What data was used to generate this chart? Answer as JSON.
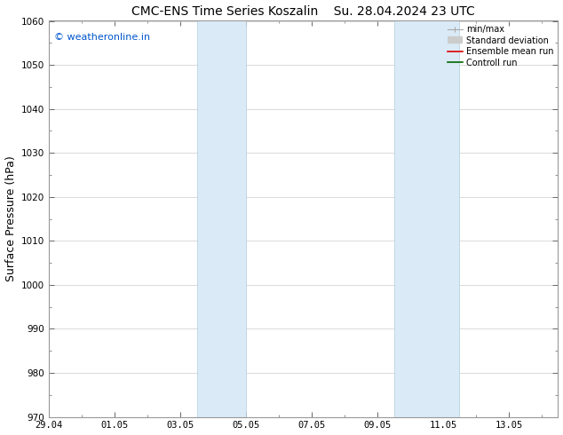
{
  "title_left": "CMC-ENS Time Series Koszalin",
  "title_right": "Su. 28.04.2024 23 UTC",
  "ylabel": "Surface Pressure (hPa)",
  "ylim": [
    970,
    1060
  ],
  "yticks": [
    970,
    980,
    990,
    1000,
    1010,
    1020,
    1030,
    1040,
    1050,
    1060
  ],
  "xtick_labels": [
    "29.04",
    "01.05",
    "03.05",
    "05.05",
    "07.05",
    "09.05",
    "11.05",
    "13.05"
  ],
  "xtick_positions": [
    0,
    2,
    4,
    6,
    8,
    10,
    12,
    14
  ],
  "xlim": [
    0,
    15.5
  ],
  "watermark": "© weatheronline.in",
  "watermark_color": "#0055cc",
  "shaded_bands": [
    {
      "x_start": 4.5,
      "x_end": 6.0
    },
    {
      "x_start": 10.5,
      "x_end": 12.5
    }
  ],
  "shaded_color": "#daeaf7",
  "shaded_edge_color": "#b0cce0",
  "background_color": "#ffffff",
  "spine_color": "#999999",
  "title_fontsize": 10,
  "tick_fontsize": 7.5,
  "label_fontsize": 9
}
